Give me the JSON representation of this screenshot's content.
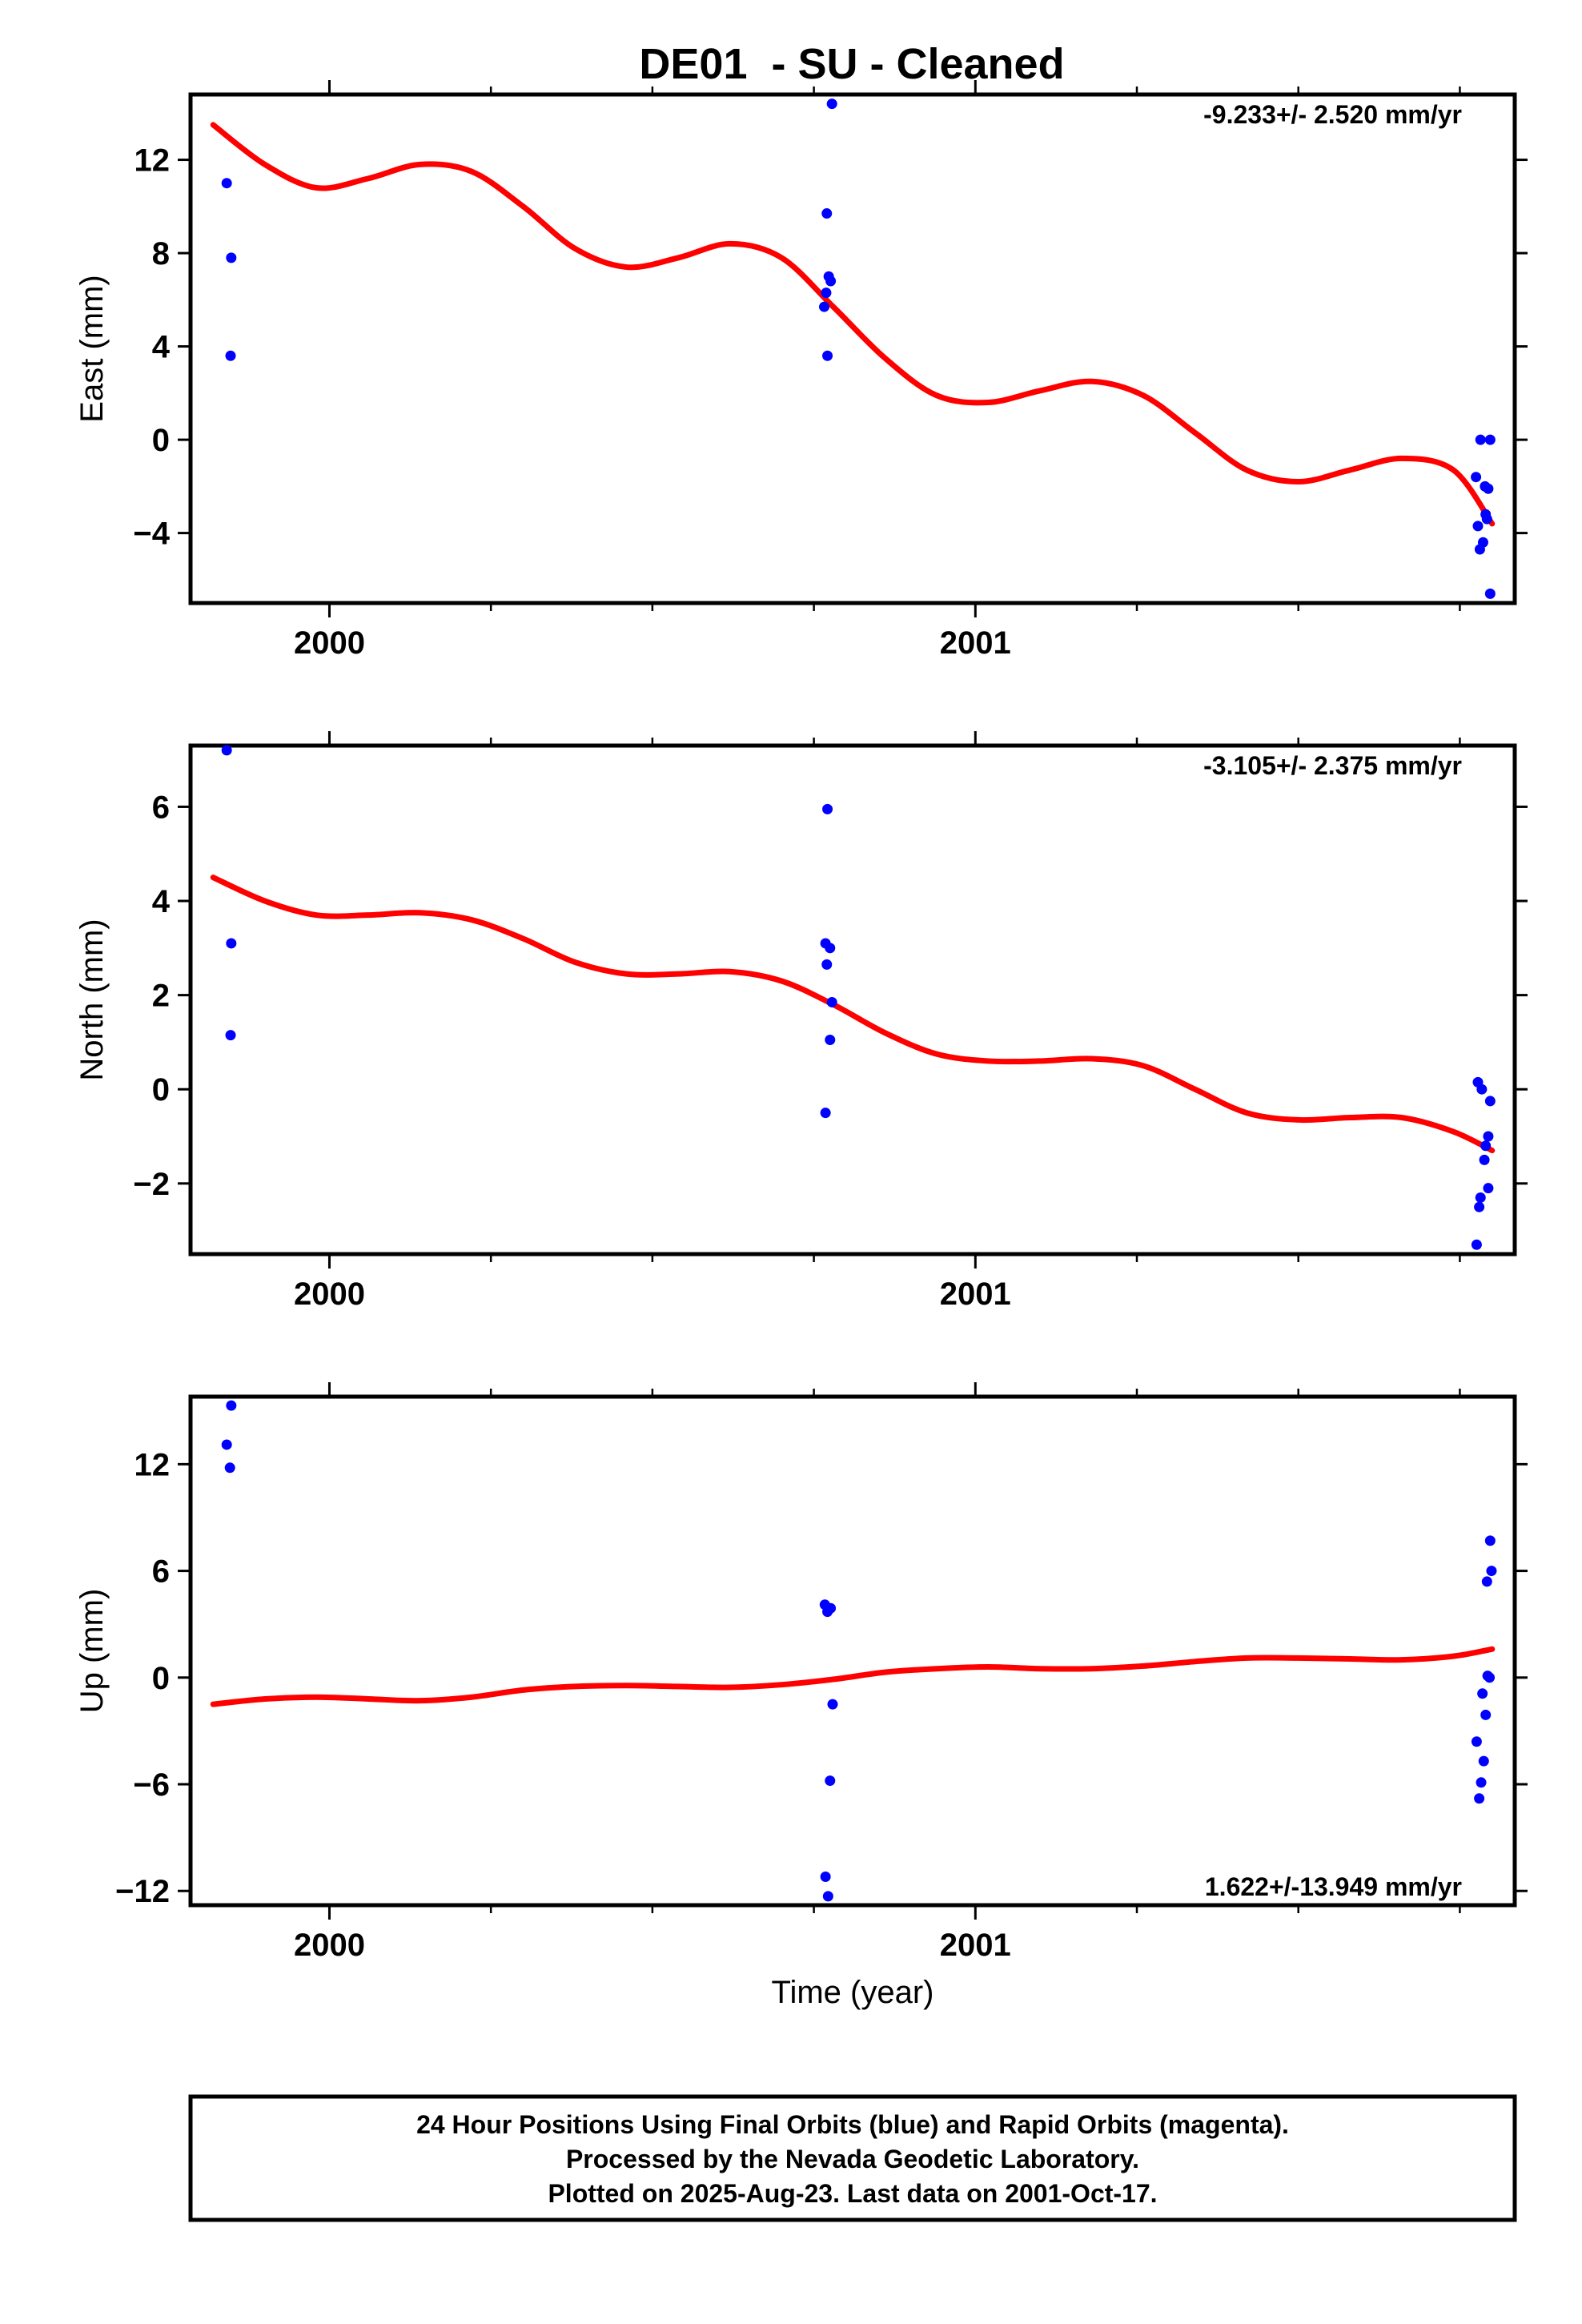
{
  "title": "DE01  - SU - Cleaned",
  "chart_data": [
    {
      "type": "scatter",
      "panel": "east",
      "ylabel": "East (mm)",
      "xlabel": "",
      "xlim": [
        1999.785,
        2001.835
      ],
      "ylim": [
        -7.0,
        14.8
      ],
      "yticks": [
        -4,
        0,
        4,
        8,
        12
      ],
      "ytick_labels": [
        "−4",
        "0",
        "4",
        "8",
        "12"
      ],
      "xticks": [
        2000,
        2001
      ],
      "xtick_labels": [
        "2000",
        "2001"
      ],
      "xminor": [
        2000.25,
        2000.5,
        2000.75,
        2001.25,
        2001.5,
        2001.75
      ],
      "rate": "-9.233+/- 2.520 mm/yr",
      "rate_position": "top-right",
      "series": [
        {
          "values": [
            {
              "x": 1999.841,
              "y": 11.0
            },
            {
              "x": 1999.848,
              "y": 7.8
            },
            {
              "x": 1999.847,
              "y": 3.6
            },
            {
              "x": 2000.778,
              "y": 14.4
            },
            {
              "x": 2000.77,
              "y": 9.7
            },
            {
              "x": 2000.773,
              "y": 7.0
            },
            {
              "x": 2000.776,
              "y": 6.8
            },
            {
              "x": 2000.769,
              "y": 6.3
            },
            {
              "x": 2000.766,
              "y": 5.7
            },
            {
              "x": 2000.771,
              "y": 3.6
            },
            {
              "x": 2001.775,
              "y": -1.6
            },
            {
              "x": 2001.782,
              "y": 0.0
            },
            {
              "x": 2001.797,
              "y": 0.0
            },
            {
              "x": 2001.789,
              "y": -2.0
            },
            {
              "x": 2001.794,
              "y": -2.1
            },
            {
              "x": 2001.79,
              "y": -3.2
            },
            {
              "x": 2001.792,
              "y": -3.4
            },
            {
              "x": 2001.778,
              "y": -3.7
            },
            {
              "x": 2001.786,
              "y": -4.4
            },
            {
              "x": 2001.781,
              "y": -4.7
            },
            {
              "x": 2001.797,
              "y": -6.6
            }
          ]
        },
        {
          "x": [
            1999.82,
            1999.9,
            1999.98,
            2000.06,
            2000.14,
            2000.22,
            2000.3,
            2000.38,
            2000.46,
            2000.54,
            2000.62,
            2000.7,
            2000.78,
            2000.86,
            2000.94,
            2001.02,
            2001.1,
            2001.18,
            2001.26,
            2001.34,
            2001.42,
            2001.5,
            2001.58,
            2001.66,
            2001.74,
            2001.8
          ],
          "y": [
            13.5,
            11.8,
            10.8,
            11.2,
            11.8,
            11.5,
            10.0,
            8.2,
            7.4,
            7.8,
            8.4,
            7.8,
            5.7,
            3.5,
            1.9,
            1.6,
            2.1,
            2.5,
            1.9,
            0.3,
            -1.3,
            -1.8,
            -1.3,
            -0.8,
            -1.3,
            -3.6
          ]
        }
      ],
      "colors": {
        "data": "#0000ff",
        "fit": "#ff0000"
      }
    },
    {
      "type": "scatter",
      "panel": "north",
      "ylabel": "North (mm)",
      "xlabel": "",
      "xlim": [
        1999.785,
        2001.835
      ],
      "ylim": [
        -3.5,
        7.3
      ],
      "yticks": [
        -2,
        0,
        2,
        4,
        6
      ],
      "ytick_labels": [
        "−2",
        "0",
        "2",
        "4",
        "6"
      ],
      "xticks": [
        2000,
        2001
      ],
      "xtick_labels": [
        "2000",
        "2001"
      ],
      "xminor": [
        2000.25,
        2000.5,
        2000.75,
        2001.25,
        2001.5,
        2001.75
      ],
      "rate": "-3.105+/- 2.375 mm/yr",
      "rate_position": "top-right",
      "series": [
        {
          "values": [
            {
              "x": 1999.841,
              "y": 7.2
            },
            {
              "x": 1999.848,
              "y": 3.1
            },
            {
              "x": 1999.847,
              "y": 1.15
            },
            {
              "x": 2000.771,
              "y": 5.95
            },
            {
              "x": 2000.768,
              "y": 3.1
            },
            {
              "x": 2000.775,
              "y": 3.0
            },
            {
              "x": 2000.77,
              "y": 2.65
            },
            {
              "x": 2000.778,
              "y": 1.85
            },
            {
              "x": 2000.775,
              "y": 1.05
            },
            {
              "x": 2000.768,
              "y": -0.5
            },
            {
              "x": 2001.778,
              "y": 0.15
            },
            {
              "x": 2001.784,
              "y": 0.0
            },
            {
              "x": 2001.797,
              "y": -0.25
            },
            {
              "x": 2001.794,
              "y": -1.0
            },
            {
              "x": 2001.79,
              "y": -1.2
            },
            {
              "x": 2001.788,
              "y": -1.5
            },
            {
              "x": 2001.794,
              "y": -2.1
            },
            {
              "x": 2001.782,
              "y": -2.3
            },
            {
              "x": 2001.78,
              "y": -2.5
            },
            {
              "x": 2001.776,
              "y": -3.3
            }
          ]
        },
        {
          "x": [
            1999.82,
            1999.9,
            1999.98,
            2000.06,
            2000.14,
            2000.22,
            2000.3,
            2000.38,
            2000.46,
            2000.54,
            2000.62,
            2000.7,
            2000.78,
            2000.86,
            2000.94,
            2001.02,
            2001.1,
            2001.18,
            2001.26,
            2001.34,
            2001.42,
            2001.5,
            2001.58,
            2001.66,
            2001.74,
            2001.8
          ],
          "y": [
            4.5,
            4.0,
            3.7,
            3.7,
            3.75,
            3.6,
            3.2,
            2.7,
            2.45,
            2.45,
            2.5,
            2.3,
            1.8,
            1.2,
            0.75,
            0.6,
            0.6,
            0.65,
            0.5,
            0.0,
            -0.5,
            -0.65,
            -0.6,
            -0.6,
            -0.9,
            -1.3
          ]
        }
      ],
      "colors": {
        "data": "#0000ff",
        "fit": "#ff0000"
      }
    },
    {
      "type": "scatter",
      "panel": "up",
      "ylabel": "Up (mm)",
      "xlabel": "Time (year)",
      "xlim": [
        1999.785,
        2001.835
      ],
      "ylim": [
        -12.8,
        15.8
      ],
      "yticks": [
        -12,
        -6,
        0,
        6,
        12
      ],
      "ytick_labels": [
        "−12",
        "−6",
        "0",
        "6",
        "12"
      ],
      "xticks": [
        2000,
        2001
      ],
      "xtick_labels": [
        "2000",
        "2001"
      ],
      "xminor": [
        2000.25,
        2000.5,
        2000.75,
        2001.25,
        2001.5,
        2001.75
      ],
      "rate": "1.622+/-13.949 mm/yr",
      "rate_position": "bottom-right",
      "series": [
        {
          "values": [
            {
              "x": 1999.848,
              "y": 15.3
            },
            {
              "x": 1999.841,
              "y": 13.1
            },
            {
              "x": 1999.846,
              "y": 11.8
            },
            {
              "x": 2000.767,
              "y": 4.1
            },
            {
              "x": 2000.771,
              "y": 3.7
            },
            {
              "x": 2000.776,
              "y": 3.9
            },
            {
              "x": 2000.779,
              "y": -1.5
            },
            {
              "x": 2000.775,
              "y": -5.8
            },
            {
              "x": 2000.768,
              "y": -11.2
            },
            {
              "x": 2000.772,
              "y": -12.3
            },
            {
              "x": 2001.797,
              "y": 7.7
            },
            {
              "x": 2001.799,
              "y": 6.0
            },
            {
              "x": 2001.792,
              "y": 5.4
            },
            {
              "x": 2001.793,
              "y": 0.1
            },
            {
              "x": 2001.796,
              "y": 0.0
            },
            {
              "x": 2001.785,
              "y": -0.9
            },
            {
              "x": 2001.79,
              "y": -2.1
            },
            {
              "x": 2001.776,
              "y": -3.6
            },
            {
              "x": 2001.787,
              "y": -4.7
            },
            {
              "x": 2001.783,
              "y": -5.9
            },
            {
              "x": 2001.78,
              "y": -6.8
            }
          ]
        },
        {
          "x": [
            1999.82,
            1999.9,
            1999.98,
            2000.06,
            2000.14,
            2000.22,
            2000.3,
            2000.38,
            2000.46,
            2000.54,
            2000.62,
            2000.7,
            2000.78,
            2000.86,
            2000.94,
            2001.02,
            2001.1,
            2001.18,
            2001.26,
            2001.34,
            2001.42,
            2001.5,
            2001.58,
            2001.66,
            2001.74,
            2001.8
          ],
          "y": [
            -1.5,
            -1.2,
            -1.1,
            -1.2,
            -1.3,
            -1.1,
            -0.7,
            -0.5,
            -0.45,
            -0.5,
            -0.55,
            -0.4,
            -0.1,
            0.3,
            0.5,
            0.6,
            0.5,
            0.5,
            0.65,
            0.9,
            1.1,
            1.1,
            1.05,
            1.0,
            1.2,
            1.6
          ]
        }
      ],
      "colors": {
        "data": "#0000ff",
        "fit": "#ff0000"
      }
    }
  ],
  "footer": {
    "line1": "24 Hour Positions Using Final Orbits (blue) and Rapid Orbits (magenta).",
    "line2": "Processed by the Nevada Geodetic Laboratory.",
    "line3": "Plotted on 2025-Aug-23. Last data on 2001-Oct-17."
  }
}
